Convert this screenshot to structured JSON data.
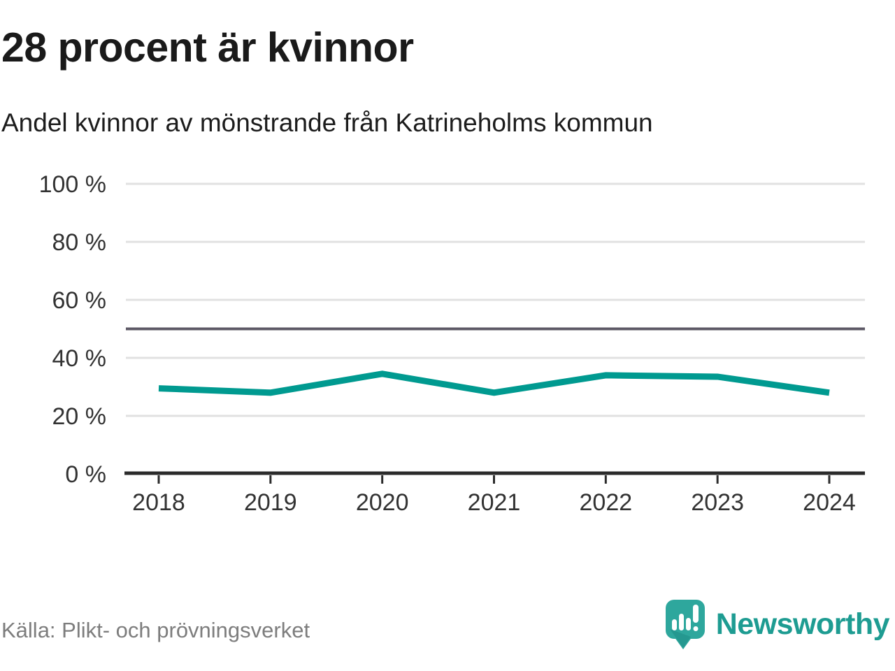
{
  "chart_data": {
    "type": "line",
    "title": "28 procent är kvinnor",
    "subtitle": "Andel kvinnor av mönstrande från Katrineholms kommun",
    "x": [
      2018,
      2019,
      2020,
      2021,
      2022,
      2023,
      2024
    ],
    "values": [
      29.5,
      28,
      34.5,
      28,
      34,
      33.5,
      28
    ],
    "unit": "%",
    "ylim": [
      0,
      100
    ],
    "yticks": [
      {
        "value": 0,
        "label": "0 %"
      },
      {
        "value": 20,
        "label": "20 %"
      },
      {
        "value": 40,
        "label": "40 %"
      },
      {
        "value": 60,
        "label": "60 %"
      },
      {
        "value": 80,
        "label": "80 %"
      },
      {
        "value": 100,
        "label": "100 %"
      }
    ],
    "reference_line": {
      "value": 50,
      "color": "#5d5966"
    },
    "line_color": "#009a90",
    "grid": true,
    "legend": false,
    "xlabel": "",
    "ylabel": ""
  },
  "footer": {
    "source": "Källa: Plikt- och prövningsverket",
    "brand": "Newsworthy",
    "brand_color": "#2ea79d"
  }
}
